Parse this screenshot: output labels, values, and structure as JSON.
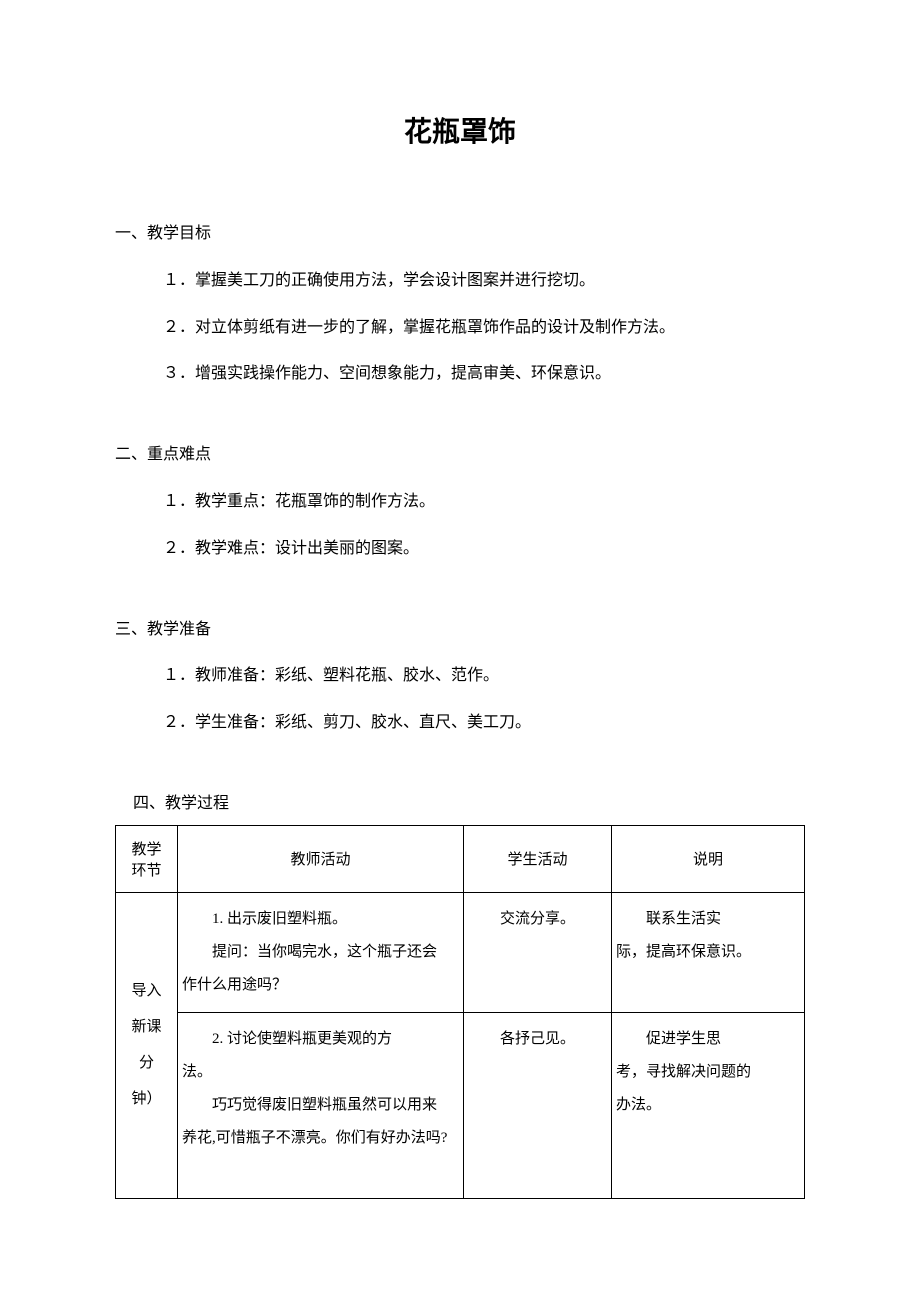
{
  "title": "花瓶罩饰",
  "sections": {
    "s1": {
      "head": "一、教学目标",
      "items": [
        "１．掌握美工刀的正确使用方法，学会设计图案并进行挖切。",
        "２．对立体剪纸有进一步的了解，掌握花瓶罩饰作品的设计及制作方法。",
        "３．增强实践操作能力、空间想象能力，提高审美、环保意识。"
      ]
    },
    "s2": {
      "head": "二、重点难点",
      "items": [
        "１．教学重点：花瓶罩饰的制作方法。",
        "２．教学难点：设计出美丽的图案。"
      ]
    },
    "s3": {
      "head": "三、教学准备",
      "items": [
        "１．教师准备：彩纸、塑料花瓶、胶水、范作。",
        "２．学生准备：彩纸、剪刀、胶水、直尺、美工刀。"
      ]
    },
    "s4": {
      "head": "四、教学过程"
    }
  },
  "table": {
    "headers": {
      "c1a": "教学",
      "c1b": "环节",
      "c2": "教师活动",
      "c3": "学生活动",
      "c4": "说明"
    },
    "stage": {
      "l1": "导入",
      "l2": "新课",
      "l3": "",
      "l4": "分",
      "l5": "钟）"
    },
    "row1": {
      "teacher_p1": "1. 出示废旧塑料瓶。",
      "teacher_p2": "提问：当你喝完水，这个瓶子还会",
      "teacher_p3": "作什么用途吗？",
      "student": "交流分享。",
      "note_p1": "联系生活实",
      "note_p2": "际，提高环保意识。"
    },
    "row2": {
      "teacher_p1": "2. 讨论使塑料瓶更美观的方",
      "teacher_p2": "法。",
      "teacher_p3": "巧巧觉得废旧塑料瓶虽然可以用来",
      "teacher_p4": "养花,可惜瓶子不漂亮。你们有好办法吗?",
      "student": "各抒己见。",
      "note_p1": "促进学生思",
      "note_p2": "考，寻找解决问题的",
      "note_p3": "办法。"
    }
  }
}
